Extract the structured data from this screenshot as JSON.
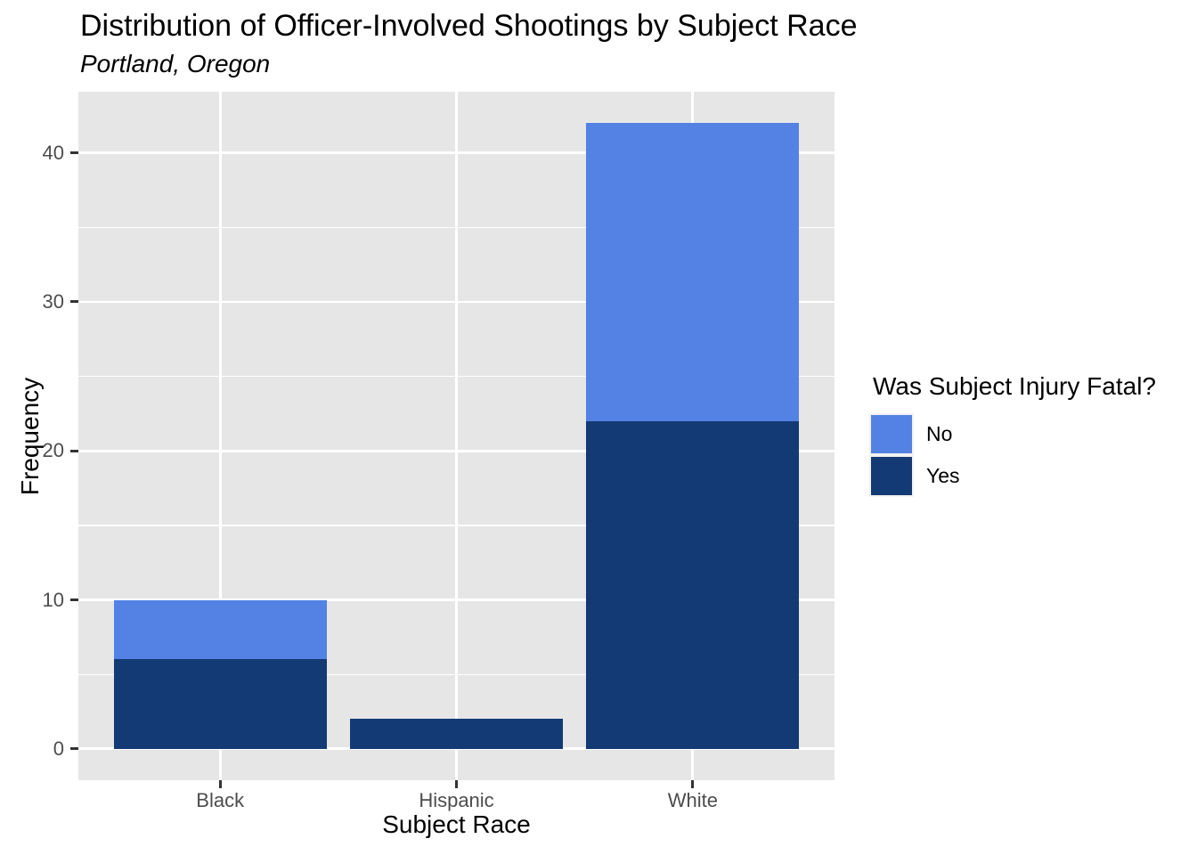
{
  "chart_data": {
    "type": "bar",
    "stacked": true,
    "title": "Distribution of Officer-Involved Shootings by Subject Race",
    "subtitle": "Portland, Oregon",
    "xlabel": "Subject Race",
    "ylabel": "Frequency",
    "categories": [
      "Black",
      "Hispanic",
      "White"
    ],
    "series": [
      {
        "name": "No",
        "color": "#5381E4",
        "values": [
          4,
          0,
          20
        ]
      },
      {
        "name": "Yes",
        "color": "#133A74",
        "values": [
          6,
          2,
          22
        ]
      }
    ],
    "stack_order_bottom_to_top": [
      "Yes",
      "No"
    ],
    "totals": [
      10,
      2,
      42
    ],
    "ylim": [
      0,
      42
    ],
    "yticks": [
      0,
      10,
      20,
      30,
      40
    ],
    "yticks_minor": [
      5,
      15,
      25,
      35
    ],
    "grid": true,
    "legend": {
      "title": "Was Subject Injury Fatal?",
      "entries": [
        "No",
        "Yes"
      ],
      "position": "right"
    },
    "colors": {
      "panel_background": "#E6E6E6",
      "gridline": "#FFFFFF",
      "tick_text": "#4D4D4D",
      "tick_mark": "#333333",
      "text": "#000000"
    }
  }
}
